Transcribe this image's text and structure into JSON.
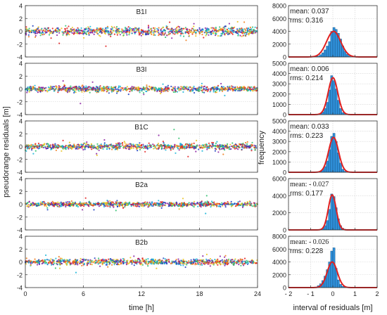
{
  "figure": {
    "ylabel_left": "pseudorange residuals [m]",
    "xlabel_left": "time [h]",
    "ylabel_right": "frequency",
    "xlabel_right": "interval of residuals [m]",
    "mean_prefix": "mean: ",
    "rms_prefix": "rms: "
  },
  "chart_data": [
    {
      "type": "scatter",
      "panel": "time-series",
      "title": "B1I",
      "x_ticks": [
        0,
        6,
        12,
        18,
        24
      ],
      "y_ticks": [
        -4,
        -2,
        0,
        2,
        4
      ],
      "xlim": [
        0,
        24
      ],
      "ylim": [
        -4,
        4
      ],
      "grid": true,
      "approx_spread_m": 0.32,
      "series_colors": [
        "#1f3fbf",
        "#17b4d8",
        "#e8c21c",
        "#ef7a1a",
        "#e02020",
        "#2fbf6f",
        "#8a1ea0"
      ]
    },
    {
      "type": "scatter",
      "panel": "time-series",
      "title": "B3I",
      "x_ticks": [
        0,
        6,
        12,
        18,
        24
      ],
      "y_ticks": [
        -4,
        -2,
        0,
        2,
        4
      ],
      "xlim": [
        0,
        24
      ],
      "ylim": [
        -4,
        4
      ],
      "grid": true,
      "approx_spread_m": 0.21,
      "series_colors": [
        "#1f3fbf",
        "#17b4d8",
        "#e8c21c",
        "#ef7a1a",
        "#e02020",
        "#2fbf6f",
        "#8a1ea0"
      ]
    },
    {
      "type": "scatter",
      "panel": "time-series",
      "title": "B1C",
      "x_ticks": [
        0,
        6,
        12,
        18,
        24
      ],
      "y_ticks": [
        -4,
        -2,
        0,
        2,
        4
      ],
      "xlim": [
        0,
        24
      ],
      "ylim": [
        -4,
        4
      ],
      "grid": true,
      "approx_spread_m": 0.22,
      "series_colors": [
        "#1f3fbf",
        "#17b4d8",
        "#e8c21c",
        "#ef7a1a",
        "#e02020",
        "#2fbf6f",
        "#8a1ea0"
      ]
    },
    {
      "type": "scatter",
      "panel": "time-series",
      "title": "B2a",
      "x_ticks": [
        0,
        6,
        12,
        18,
        24
      ],
      "y_ticks": [
        -4,
        -2,
        0,
        2,
        4
      ],
      "xlim": [
        0,
        24
      ],
      "ylim": [
        -4,
        4
      ],
      "grid": true,
      "approx_spread_m": 0.18,
      "series_colors": [
        "#1f3fbf",
        "#17b4d8",
        "#e8c21c",
        "#ef7a1a",
        "#e02020",
        "#2fbf6f",
        "#8a1ea0"
      ]
    },
    {
      "type": "scatter",
      "panel": "time-series",
      "title": "B2b",
      "x_ticks": [
        0,
        6,
        12,
        18,
        24
      ],
      "y_ticks": [
        -4,
        -2,
        0,
        2,
        4
      ],
      "xlim": [
        0,
        24
      ],
      "ylim": [
        -4,
        4
      ],
      "grid": true,
      "approx_spread_m": 0.23,
      "series_colors": [
        "#1f3fbf",
        "#17b4d8",
        "#e8c21c",
        "#ef7a1a",
        "#e02020",
        "#2fbf6f",
        "#8a1ea0"
      ]
    },
    {
      "type": "bar",
      "panel": "histogram",
      "signal": "B1I",
      "mean_text": "0.037",
      "rms_text": "0.316",
      "mean": 0.037,
      "rms": 0.316,
      "bin_width": 0.1,
      "bin_centers": [
        -0.75,
        -0.65,
        -0.55,
        -0.45,
        -0.35,
        -0.25,
        -0.15,
        -0.05,
        0.05,
        0.15,
        0.25,
        0.35,
        0.45,
        0.55,
        0.65,
        0.75
      ],
      "values": [
        80,
        150,
        350,
        650,
        1100,
        1700,
        2400,
        4000,
        4600,
        4300,
        3700,
        2800,
        1700,
        900,
        400,
        150
      ],
      "fit_peak": 4000,
      "fit_color": "#e02020",
      "bar_color": "#2f8fd8",
      "x_ticks": [
        -2,
        -1,
        0,
        1,
        2
      ],
      "y_ticks": [
        0,
        2000,
        4000,
        6000,
        8000
      ],
      "xlim": [
        -2,
        2
      ],
      "ylim": [
        0,
        8000
      ],
      "grid": true
    },
    {
      "type": "bar",
      "panel": "histogram",
      "signal": "B3I",
      "mean_text": "0.006",
      "rms_text": "0.214",
      "mean": 0.006,
      "rms": 0.214,
      "bin_width": 0.1,
      "bin_centers": [
        -0.55,
        -0.45,
        -0.35,
        -0.25,
        -0.15,
        -0.05,
        0.05,
        0.15,
        0.25,
        0.35,
        0.45,
        0.55
      ],
      "values": [
        80,
        250,
        600,
        1200,
        2400,
        3800,
        3300,
        2500,
        1400,
        600,
        200,
        80
      ],
      "fit_peak": 3600,
      "fit_color": "#e02020",
      "bar_color": "#2f8fd8",
      "x_ticks": [
        -2,
        -1,
        0,
        1,
        2
      ],
      "y_ticks": [
        0,
        1000,
        2000,
        3000,
        4000,
        5000
      ],
      "xlim": [
        -2,
        2
      ],
      "ylim": [
        0,
        5000
      ],
      "grid": true
    },
    {
      "type": "bar",
      "panel": "histogram",
      "signal": "B1C",
      "mean_text": "0.033",
      "rms_text": "0.223",
      "mean": 0.033,
      "rms": 0.223,
      "bin_width": 0.1,
      "bin_centers": [
        -0.55,
        -0.45,
        -0.35,
        -0.25,
        -0.15,
        -0.05,
        0.05,
        0.15,
        0.25,
        0.35,
        0.45,
        0.55
      ],
      "values": [
        80,
        250,
        550,
        1100,
        2200,
        3500,
        3800,
        3000,
        1900,
        900,
        300,
        100
      ],
      "fit_peak": 3400,
      "fit_color": "#e02020",
      "bar_color": "#2f8fd8",
      "x_ticks": [
        -2,
        -1,
        0,
        1,
        2
      ],
      "y_ticks": [
        0,
        1000,
        2000,
        3000,
        4000,
        5000
      ],
      "xlim": [
        -2,
        2
      ],
      "ylim": [
        0,
        5000
      ],
      "grid": true
    },
    {
      "type": "bar",
      "panel": "histogram",
      "signal": "B2a",
      "mean_text": "- 0.027",
      "rms_text": "0.177",
      "mean": -0.027,
      "rms": 0.177,
      "bin_width": 0.1,
      "bin_centers": [
        -0.55,
        -0.45,
        -0.35,
        -0.25,
        -0.15,
        -0.05,
        0.05,
        0.15,
        0.25,
        0.35,
        0.45,
        0.55
      ],
      "values": [
        80,
        200,
        500,
        1100,
        2400,
        4200,
        3900,
        2600,
        1300,
        500,
        200,
        80
      ],
      "fit_peak": 4100,
      "fit_color": "#e02020",
      "bar_color": "#2f8fd8",
      "x_ticks": [
        -2,
        -1,
        0,
        1,
        2
      ],
      "y_ticks": [
        0,
        2000,
        4000,
        6000
      ],
      "xlim": [
        -2,
        2
      ],
      "ylim": [
        0,
        6000
      ],
      "grid": true
    },
    {
      "type": "bar",
      "panel": "histogram",
      "signal": "B2b",
      "mean_text": "- 0.026",
      "rms_text": "0.228",
      "mean": -0.026,
      "rms": 0.228,
      "bin_width": 0.1,
      "bin_centers": [
        -0.75,
        -0.65,
        -0.55,
        -0.45,
        -0.35,
        -0.25,
        -0.15,
        -0.05,
        0.05,
        0.15,
        0.25,
        0.35,
        0.45,
        0.55
      ],
      "values": [
        100,
        300,
        600,
        1100,
        1800,
        2800,
        4000,
        5700,
        6200,
        3000,
        1200,
        500,
        200,
        80
      ],
      "fit_peak": 4000,
      "fit_color": "#e02020",
      "bar_color": "#2f8fd8",
      "x_ticks": [
        -2,
        -1,
        0,
        1,
        2
      ],
      "y_ticks": [
        0,
        2000,
        4000,
        6000,
        8000
      ],
      "xlim": [
        -2,
        2
      ],
      "ylim": [
        0,
        8000
      ],
      "grid": true
    }
  ]
}
